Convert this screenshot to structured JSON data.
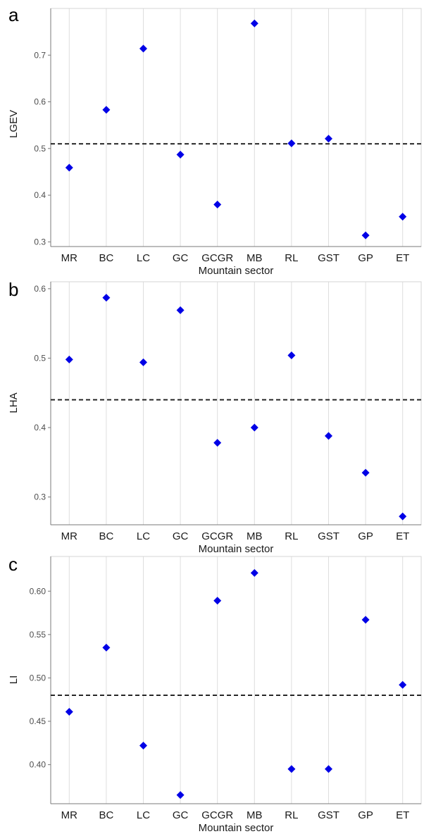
{
  "chart_data": [
    {
      "type": "scatter",
      "panel_label": "a",
      "categories": [
        "MR",
        "BC",
        "LC",
        "GC",
        "GCGR",
        "MB",
        "RL",
        "GST",
        "GP",
        "ET"
      ],
      "values": [
        0.459,
        0.583,
        0.714,
        0.487,
        0.38,
        0.768,
        0.511,
        0.521,
        0.314,
        0.354
      ],
      "reference_line": 0.51,
      "ylim": [
        0.29,
        0.8
      ],
      "yticks": [
        0.3,
        0.4,
        0.5,
        0.6,
        0.7
      ],
      "ytick_labels": [
        "0.3",
        "0.4",
        "0.5",
        "0.6",
        "0.7"
      ],
      "xlabel": "Mountain sector",
      "ylabel": "LGEV",
      "marker": "diamond",
      "marker_color": "#0000e6",
      "grid": "vertical"
    },
    {
      "type": "scatter",
      "panel_label": "b",
      "categories": [
        "MR",
        "BC",
        "LC",
        "GC",
        "GCGR",
        "MB",
        "RL",
        "GST",
        "GP",
        "ET"
      ],
      "values": [
        0.498,
        0.587,
        0.494,
        0.569,
        0.378,
        0.4,
        0.504,
        0.388,
        0.335,
        0.272
      ],
      "reference_line": 0.44,
      "ylim": [
        0.26,
        0.61
      ],
      "yticks": [
        0.3,
        0.4,
        0.5,
        0.6
      ],
      "ytick_labels": [
        "0.3",
        "0.4",
        "0.5",
        "0.6"
      ],
      "xlabel": "Mountain sector",
      "ylabel": "LHA",
      "marker": "diamond",
      "marker_color": "#0000e6",
      "grid": "vertical"
    },
    {
      "type": "scatter",
      "panel_label": "c",
      "categories": [
        "MR",
        "BC",
        "LC",
        "GC",
        "GCGR",
        "MB",
        "RL",
        "GST",
        "GP",
        "ET"
      ],
      "values": [
        0.461,
        0.535,
        0.422,
        0.365,
        0.589,
        0.621,
        0.395,
        0.395,
        0.567,
        0.492
      ],
      "reference_line": 0.48,
      "ylim": [
        0.355,
        0.64
      ],
      "yticks": [
        0.4,
        0.45,
        0.5,
        0.55,
        0.6
      ],
      "ytick_labels": [
        "0.40",
        "0.45",
        "0.50",
        "0.55",
        "0.60"
      ],
      "xlabel": "Mountain sector",
      "ylabel": "LI",
      "marker": "diamond",
      "marker_color": "#0000e6",
      "grid": "vertical"
    }
  ]
}
